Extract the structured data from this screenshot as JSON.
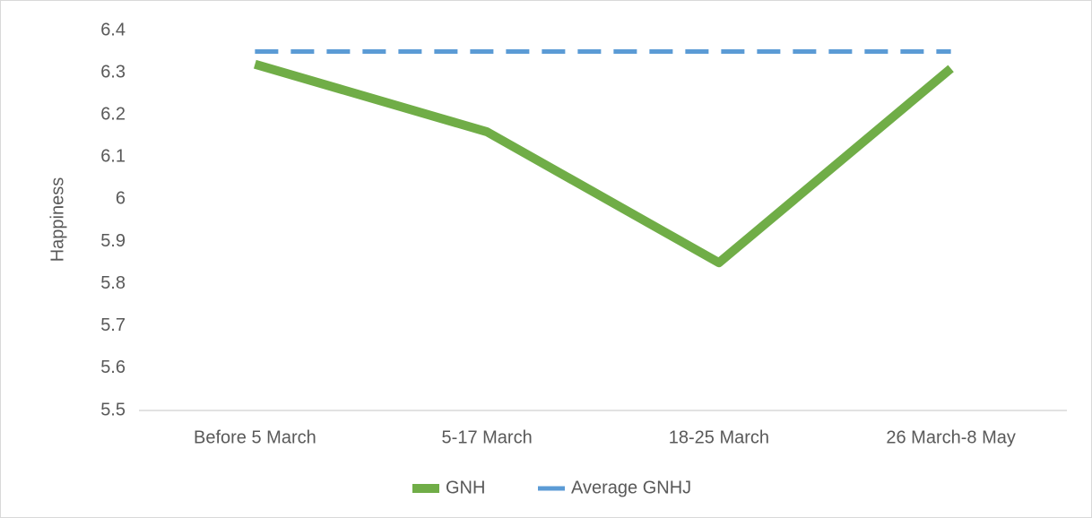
{
  "chart_data": {
    "type": "line",
    "y_label": "Happiness",
    "categories": [
      "Before 5 March",
      "5-17 March",
      "18-25 March",
      "26 March-8 May"
    ],
    "series": [
      {
        "name": "GNH",
        "color": "#70ad47",
        "style": "solid",
        "values": [
          6.32,
          6.16,
          5.85,
          6.31
        ]
      },
      {
        "name": "Average GNHJ",
        "color": "#5b9bd5",
        "style": "dashed",
        "values": [
          6.35,
          6.35,
          6.35,
          6.35
        ]
      }
    ],
    "ylim": [
      5.5,
      6.4
    ],
    "yticks": [
      5.5,
      5.6,
      5.7,
      5.8,
      5.9,
      6,
      6.1,
      6.2,
      6.3,
      6.4
    ],
    "grid": false,
    "legend": "bottom"
  }
}
